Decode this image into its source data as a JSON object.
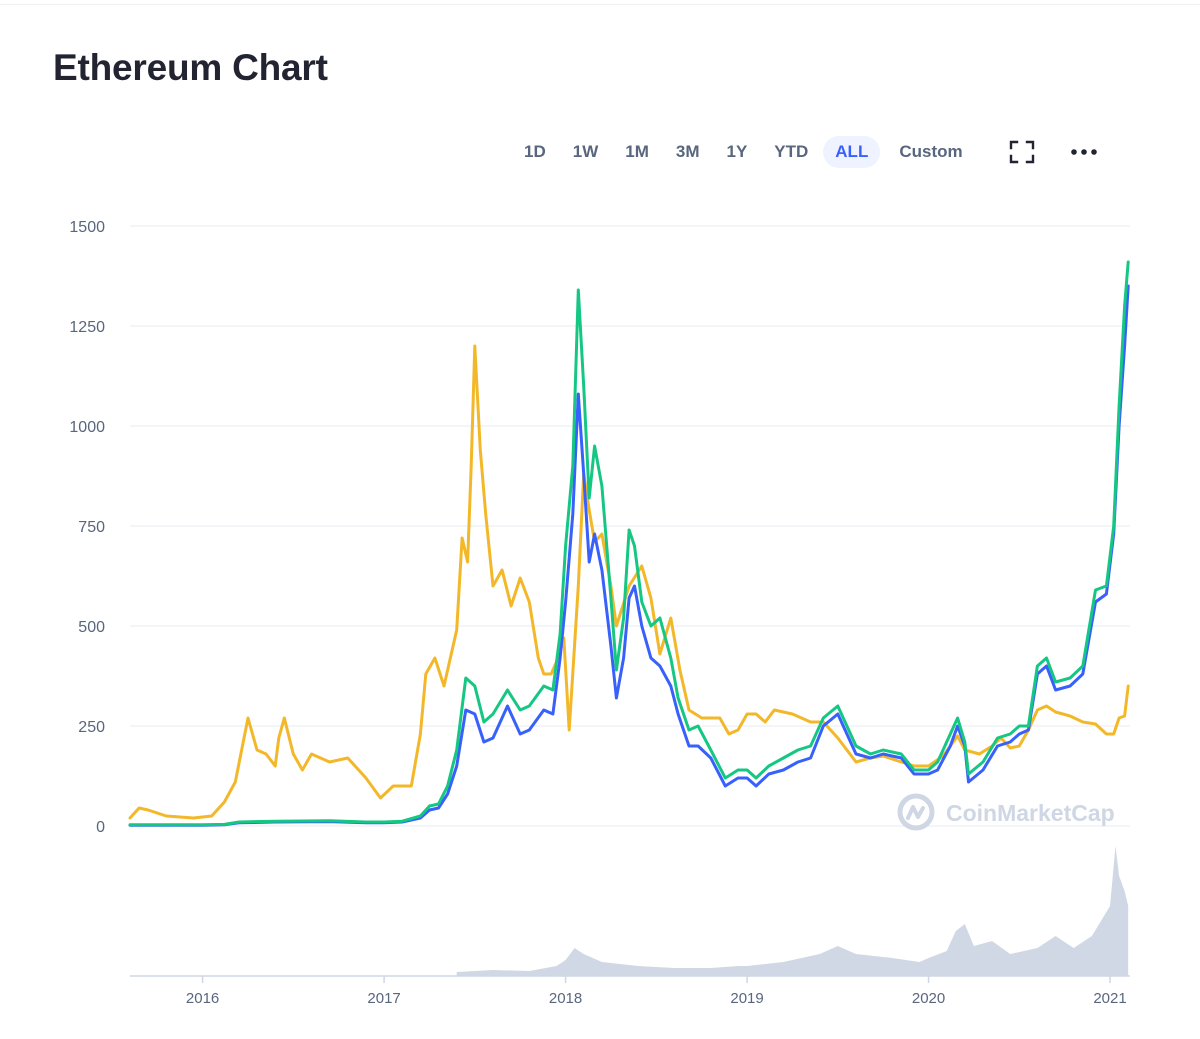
{
  "page": {
    "title": "Ethereum Chart"
  },
  "toolbar": {
    "ranges": [
      "1D",
      "1W",
      "1M",
      "3M",
      "1Y",
      "YTD",
      "ALL"
    ],
    "active_range": "ALL",
    "custom_label": "Custom",
    "fullscreen_icon": "fullscreen-icon",
    "more_icon": "more-horizontal-icon"
  },
  "watermark": {
    "text": "CoinMarketCap",
    "icon": "coinmarketcap-logo-icon"
  },
  "colors": {
    "blue": "#3861fb",
    "green": "#16c784",
    "yellow": "#f3b829",
    "grid": "#eff2f5",
    "volume": "#cfd6e4",
    "axis": "#58667e"
  },
  "chart_data": {
    "type": "line",
    "title": "",
    "xlabel": "",
    "ylabel": "",
    "ylim": [
      0,
      1500
    ],
    "xlim": [
      2015.6,
      2021.11
    ],
    "y_ticks": [
      "0",
      "250",
      "500",
      "750",
      "1000",
      "1250",
      "1500"
    ],
    "x_ticks": [
      "2016",
      "2017",
      "2018",
      "2019",
      "2020",
      "2021"
    ],
    "grid": true,
    "legend": "none",
    "series": [
      {
        "color": "#3861fb",
        "points": [
          [
            2015.6,
            2
          ],
          [
            2016.0,
            2
          ],
          [
            2016.12,
            3
          ],
          [
            2016.2,
            8
          ],
          [
            2016.4,
            10
          ],
          [
            2016.7,
            11
          ],
          [
            2016.9,
            8
          ],
          [
            2017.0,
            8
          ],
          [
            2017.1,
            10
          ],
          [
            2017.2,
            20
          ],
          [
            2017.25,
            40
          ],
          [
            2017.3,
            45
          ],
          [
            2017.35,
            80
          ],
          [
            2017.4,
            150
          ],
          [
            2017.45,
            290
          ],
          [
            2017.5,
            280
          ],
          [
            2017.55,
            210
          ],
          [
            2017.6,
            220
          ],
          [
            2017.68,
            300
          ],
          [
            2017.75,
            230
          ],
          [
            2017.8,
            240
          ],
          [
            2017.88,
            290
          ],
          [
            2017.93,
            280
          ],
          [
            2017.97,
            420
          ],
          [
            2018.0,
            560
          ],
          [
            2018.04,
            780
          ],
          [
            2018.07,
            1080
          ],
          [
            2018.1,
            880
          ],
          [
            2018.13,
            660
          ],
          [
            2018.16,
            730
          ],
          [
            2018.2,
            640
          ],
          [
            2018.25,
            450
          ],
          [
            2018.28,
            320
          ],
          [
            2018.32,
            420
          ],
          [
            2018.35,
            570
          ],
          [
            2018.38,
            600
          ],
          [
            2018.42,
            500
          ],
          [
            2018.47,
            420
          ],
          [
            2018.52,
            400
          ],
          [
            2018.58,
            350
          ],
          [
            2018.62,
            280
          ],
          [
            2018.68,
            200
          ],
          [
            2018.73,
            200
          ],
          [
            2018.8,
            170
          ],
          [
            2018.88,
            100
          ],
          [
            2018.95,
            120
          ],
          [
            2019.0,
            120
          ],
          [
            2019.05,
            100
          ],
          [
            2019.12,
            130
          ],
          [
            2019.2,
            140
          ],
          [
            2019.28,
            160
          ],
          [
            2019.35,
            170
          ],
          [
            2019.42,
            250
          ],
          [
            2019.5,
            280
          ],
          [
            2019.55,
            230
          ],
          [
            2019.6,
            180
          ],
          [
            2019.68,
            170
          ],
          [
            2019.75,
            180
          ],
          [
            2019.85,
            170
          ],
          [
            2019.92,
            130
          ],
          [
            2020.0,
            130
          ],
          [
            2020.05,
            140
          ],
          [
            2020.12,
            200
          ],
          [
            2020.16,
            250
          ],
          [
            2020.2,
            200
          ],
          [
            2020.22,
            110
          ],
          [
            2020.3,
            140
          ],
          [
            2020.38,
            200
          ],
          [
            2020.45,
            210
          ],
          [
            2020.5,
            230
          ],
          [
            2020.55,
            240
          ],
          [
            2020.6,
            380
          ],
          [
            2020.65,
            400
          ],
          [
            2020.7,
            340
          ],
          [
            2020.78,
            350
          ],
          [
            2020.85,
            380
          ],
          [
            2020.92,
            560
          ],
          [
            2020.98,
            580
          ],
          [
            2021.02,
            730
          ],
          [
            2021.05,
            1000
          ],
          [
            2021.08,
            1200
          ],
          [
            2021.1,
            1350
          ]
        ]
      },
      {
        "color": "#16c784",
        "points": [
          [
            2015.6,
            3
          ],
          [
            2016.0,
            3
          ],
          [
            2016.12,
            4
          ],
          [
            2016.2,
            10
          ],
          [
            2016.4,
            12
          ],
          [
            2016.7,
            13
          ],
          [
            2016.9,
            10
          ],
          [
            2017.0,
            10
          ],
          [
            2017.1,
            12
          ],
          [
            2017.2,
            25
          ],
          [
            2017.25,
            50
          ],
          [
            2017.3,
            55
          ],
          [
            2017.35,
            100
          ],
          [
            2017.4,
            190
          ],
          [
            2017.45,
            370
          ],
          [
            2017.5,
            350
          ],
          [
            2017.55,
            260
          ],
          [
            2017.6,
            280
          ],
          [
            2017.68,
            340
          ],
          [
            2017.75,
            290
          ],
          [
            2017.8,
            300
          ],
          [
            2017.88,
            350
          ],
          [
            2017.93,
            340
          ],
          [
            2017.97,
            480
          ],
          [
            2018.0,
            700
          ],
          [
            2018.04,
            900
          ],
          [
            2018.07,
            1340
          ],
          [
            2018.1,
            1100
          ],
          [
            2018.13,
            820
          ],
          [
            2018.16,
            950
          ],
          [
            2018.2,
            850
          ],
          [
            2018.25,
            570
          ],
          [
            2018.28,
            390
          ],
          [
            2018.32,
            520
          ],
          [
            2018.35,
            740
          ],
          [
            2018.38,
            700
          ],
          [
            2018.42,
            560
          ],
          [
            2018.47,
            500
          ],
          [
            2018.52,
            520
          ],
          [
            2018.58,
            420
          ],
          [
            2018.62,
            320
          ],
          [
            2018.68,
            240
          ],
          [
            2018.73,
            250
          ],
          [
            2018.8,
            190
          ],
          [
            2018.88,
            120
          ],
          [
            2018.95,
            140
          ],
          [
            2019.0,
            140
          ],
          [
            2019.05,
            120
          ],
          [
            2019.12,
            150
          ],
          [
            2019.2,
            170
          ],
          [
            2019.28,
            190
          ],
          [
            2019.35,
            200
          ],
          [
            2019.42,
            270
          ],
          [
            2019.5,
            300
          ],
          [
            2019.55,
            250
          ],
          [
            2019.6,
            200
          ],
          [
            2019.68,
            180
          ],
          [
            2019.75,
            190
          ],
          [
            2019.85,
            180
          ],
          [
            2019.92,
            140
          ],
          [
            2020.0,
            140
          ],
          [
            2020.05,
            160
          ],
          [
            2020.12,
            230
          ],
          [
            2020.16,
            270
          ],
          [
            2020.2,
            210
          ],
          [
            2020.22,
            130
          ],
          [
            2020.3,
            160
          ],
          [
            2020.38,
            220
          ],
          [
            2020.45,
            230
          ],
          [
            2020.5,
            250
          ],
          [
            2020.55,
            250
          ],
          [
            2020.6,
            400
          ],
          [
            2020.65,
            420
          ],
          [
            2020.7,
            360
          ],
          [
            2020.78,
            370
          ],
          [
            2020.85,
            400
          ],
          [
            2020.92,
            590
          ],
          [
            2020.98,
            600
          ],
          [
            2021.02,
            750
          ],
          [
            2021.05,
            1050
          ],
          [
            2021.08,
            1300
          ],
          [
            2021.1,
            1410
          ]
        ]
      },
      {
        "color": "#f3b829",
        "points": [
          [
            2015.6,
            20
          ],
          [
            2015.65,
            45
          ],
          [
            2015.7,
            40
          ],
          [
            2015.8,
            25
          ],
          [
            2015.95,
            20
          ],
          [
            2016.05,
            25
          ],
          [
            2016.12,
            60
          ],
          [
            2016.18,
            110
          ],
          [
            2016.25,
            270
          ],
          [
            2016.3,
            190
          ],
          [
            2016.35,
            180
          ],
          [
            2016.4,
            150
          ],
          [
            2016.42,
            220
          ],
          [
            2016.45,
            270
          ],
          [
            2016.5,
            180
          ],
          [
            2016.55,
            140
          ],
          [
            2016.6,
            180
          ],
          [
            2016.7,
            160
          ],
          [
            2016.8,
            170
          ],
          [
            2016.9,
            120
          ],
          [
            2016.98,
            70
          ],
          [
            2017.05,
            100
          ],
          [
            2017.15,
            100
          ],
          [
            2017.2,
            230
          ],
          [
            2017.23,
            380
          ],
          [
            2017.28,
            420
          ],
          [
            2017.33,
            350
          ],
          [
            2017.4,
            490
          ],
          [
            2017.43,
            720
          ],
          [
            2017.46,
            660
          ],
          [
            2017.48,
            900
          ],
          [
            2017.5,
            1200
          ],
          [
            2017.53,
            940
          ],
          [
            2017.56,
            780
          ],
          [
            2017.6,
            600
          ],
          [
            2017.65,
            640
          ],
          [
            2017.7,
            550
          ],
          [
            2017.75,
            620
          ],
          [
            2017.8,
            560
          ],
          [
            2017.85,
            420
          ],
          [
            2017.88,
            380
          ],
          [
            2017.92,
            380
          ],
          [
            2017.96,
            420
          ],
          [
            2017.99,
            470
          ],
          [
            2018.02,
            240
          ],
          [
            2018.07,
            600
          ],
          [
            2018.1,
            880
          ],
          [
            2018.13,
            790
          ],
          [
            2018.16,
            710
          ],
          [
            2018.2,
            730
          ],
          [
            2018.25,
            600
          ],
          [
            2018.28,
            500
          ],
          [
            2018.35,
            600
          ],
          [
            2018.42,
            650
          ],
          [
            2018.47,
            570
          ],
          [
            2018.52,
            430
          ],
          [
            2018.58,
            520
          ],
          [
            2018.63,
            390
          ],
          [
            2018.68,
            290
          ],
          [
            2018.75,
            270
          ],
          [
            2018.85,
            270
          ],
          [
            2018.9,
            230
          ],
          [
            2018.95,
            240
          ],
          [
            2019.0,
            280
          ],
          [
            2019.05,
            280
          ],
          [
            2019.1,
            260
          ],
          [
            2019.15,
            290
          ],
          [
            2019.25,
            280
          ],
          [
            2019.35,
            260
          ],
          [
            2019.42,
            260
          ],
          [
            2019.5,
            220
          ],
          [
            2019.55,
            190
          ],
          [
            2019.6,
            160
          ],
          [
            2019.68,
            170
          ],
          [
            2019.75,
            175
          ],
          [
            2019.85,
            160
          ],
          [
            2019.92,
            150
          ],
          [
            2020.0,
            150
          ],
          [
            2020.08,
            175
          ],
          [
            2020.16,
            225
          ],
          [
            2020.2,
            190
          ],
          [
            2020.28,
            180
          ],
          [
            2020.35,
            200
          ],
          [
            2020.4,
            220
          ],
          [
            2020.45,
            195
          ],
          [
            2020.5,
            200
          ],
          [
            2020.55,
            240
          ],
          [
            2020.6,
            290
          ],
          [
            2020.65,
            300
          ],
          [
            2020.7,
            285
          ],
          [
            2020.78,
            275
          ],
          [
            2020.85,
            260
          ],
          [
            2020.92,
            255
          ],
          [
            2020.98,
            230
          ],
          [
            2021.02,
            230
          ],
          [
            2021.05,
            270
          ],
          [
            2021.08,
            275
          ],
          [
            2021.1,
            350
          ]
        ]
      }
    ],
    "volume": {
      "points": [
        [
          2017.4,
          4
        ],
        [
          2017.6,
          6
        ],
        [
          2017.8,
          5
        ],
        [
          2017.95,
          10
        ],
        [
          2018.0,
          16
        ],
        [
          2018.05,
          28
        ],
        [
          2018.1,
          22
        ],
        [
          2018.2,
          14
        ],
        [
          2018.4,
          10
        ],
        [
          2018.6,
          8
        ],
        [
          2018.8,
          8
        ],
        [
          2018.95,
          10
        ],
        [
          2019.0,
          10
        ],
        [
          2019.2,
          14
        ],
        [
          2019.4,
          22
        ],
        [
          2019.5,
          30
        ],
        [
          2019.6,
          22
        ],
        [
          2019.8,
          18
        ],
        [
          2019.95,
          14
        ],
        [
          2020.0,
          18
        ],
        [
          2020.1,
          25
        ],
        [
          2020.15,
          45
        ],
        [
          2020.2,
          52
        ],
        [
          2020.25,
          30
        ],
        [
          2020.35,
          35
        ],
        [
          2020.45,
          22
        ],
        [
          2020.6,
          28
        ],
        [
          2020.7,
          40
        ],
        [
          2020.8,
          28
        ],
        [
          2020.9,
          40
        ],
        [
          2021.0,
          70
        ],
        [
          2021.03,
          130
        ],
        [
          2021.05,
          100
        ],
        [
          2021.08,
          85
        ],
        [
          2021.1,
          70
        ]
      ]
    }
  }
}
